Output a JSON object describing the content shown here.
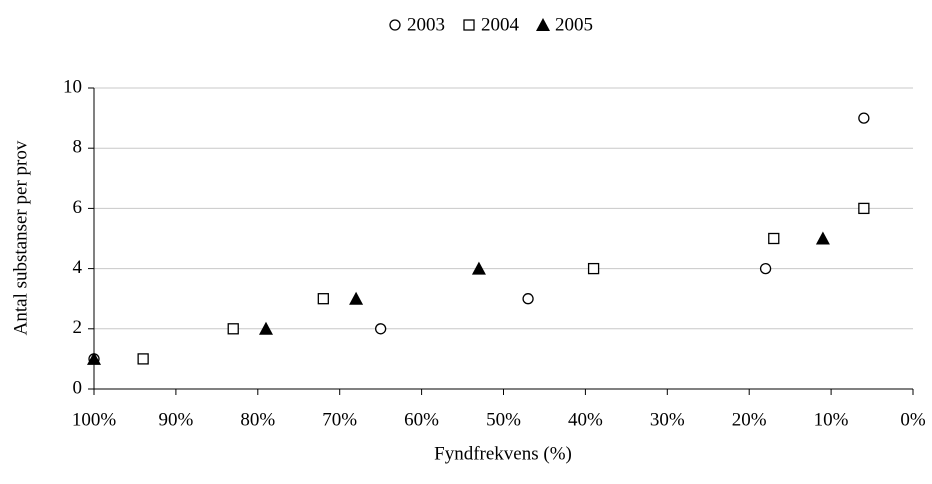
{
  "chart_data": {
    "type": "scatter",
    "xlabel": "Fyndfrekvens (%)",
    "ylabel": "Antal substanser per prov",
    "xlim": [
      100,
      0
    ],
    "xticks": [
      {
        "value": 100,
        "label": "100%"
      },
      {
        "value": 90,
        "label": "90%"
      },
      {
        "value": 80,
        "label": "80%"
      },
      {
        "value": 70,
        "label": "70%"
      },
      {
        "value": 60,
        "label": "60%"
      },
      {
        "value": 50,
        "label": "50%"
      },
      {
        "value": 40,
        "label": "40%"
      },
      {
        "value": 30,
        "label": "30%"
      },
      {
        "value": 20,
        "label": "20%"
      },
      {
        "value": 10,
        "label": "10%"
      },
      {
        "value": 0,
        "label": "0%"
      }
    ],
    "ylim": [
      0,
      10
    ],
    "yticks": [
      0,
      2,
      4,
      6,
      8,
      10
    ],
    "grid": true,
    "legend": "top",
    "series": [
      {
        "name": "2003",
        "marker": "circle",
        "color": "#000000",
        "x": [
          100,
          65,
          47,
          18,
          6
        ],
        "values": [
          1,
          2,
          3,
          4,
          9
        ]
      },
      {
        "name": "2004",
        "marker": "square",
        "color": "#000000",
        "x": [
          94,
          83,
          72,
          39,
          17,
          6
        ],
        "values": [
          1,
          2,
          3,
          4,
          5,
          6
        ]
      },
      {
        "name": "2005",
        "marker": "triangle",
        "color": "#000000",
        "x": [
          100,
          79,
          68,
          53,
          11
        ],
        "values": [
          1,
          2,
          3,
          4,
          5
        ]
      }
    ]
  }
}
